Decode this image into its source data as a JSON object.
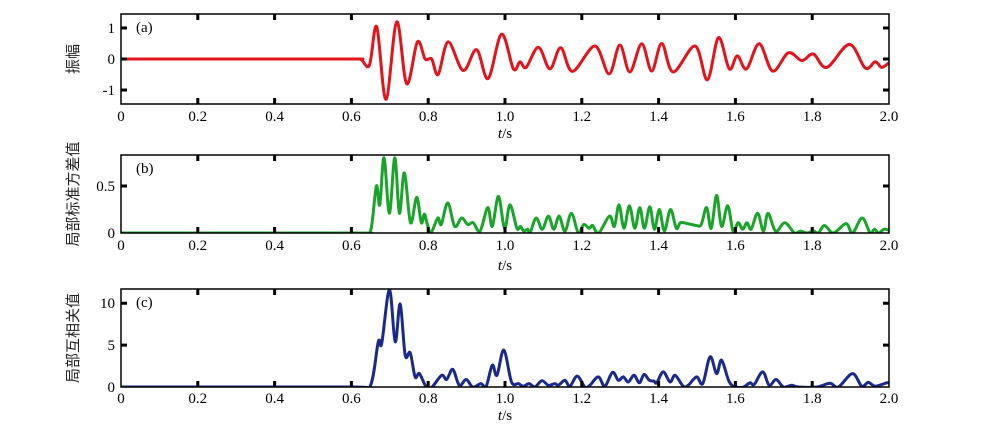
{
  "chart_data": [
    {
      "type": "line",
      "panel_label": "(a)",
      "ylabel": "振幅",
      "xlabel_italic": "t",
      "xlabel_unit": "/s",
      "xlim": [
        0,
        2.0
      ],
      "ylim": [
        -1.45,
        1.45
      ],
      "xticks": [
        "0",
        "0.2",
        "0.4",
        "0.6",
        "0.8",
        "1.0",
        "1.2",
        "1.4",
        "1.6",
        "1.8",
        "2.0"
      ],
      "yticks": [
        {
          "v": 1,
          "label": "1"
        },
        {
          "v": 0,
          "label": "0"
        },
        {
          "v": -1,
          "label": "-1"
        }
      ],
      "color": "#e3141b",
      "series": {
        "name": "amplitude",
        "x": [
          0,
          0.3,
          0.6,
          0.625,
          0.647,
          0.666,
          0.69,
          0.718,
          0.744,
          0.772,
          0.792,
          0.809,
          0.826,
          0.852,
          0.891,
          0.926,
          0.956,
          0.991,
          1.022,
          1.039,
          1.055,
          1.087,
          1.117,
          1.145,
          1.176,
          1.234,
          1.271,
          1.299,
          1.325,
          1.356,
          1.382,
          1.408,
          1.438,
          1.495,
          1.527,
          1.556,
          1.584,
          1.605,
          1.629,
          1.662,
          1.697,
          1.738,
          1.773,
          1.803,
          1.838,
          1.897,
          1.938,
          1.964,
          1.981,
          2.0
        ],
        "y": [
          0,
          0,
          0,
          -0.02,
          -0.2,
          1.04,
          -1.3,
          1.2,
          -0.8,
          0.55,
          0,
          0,
          -0.5,
          0.55,
          -0.37,
          0.3,
          -0.63,
          0.8,
          -0.32,
          -0.09,
          -0.27,
          0.38,
          -0.32,
          0.36,
          -0.4,
          0.42,
          -0.48,
          0.45,
          -0.42,
          0.49,
          -0.39,
          0.5,
          -0.42,
          0.42,
          -0.67,
          0.69,
          -0.32,
          0.1,
          -0.32,
          0.49,
          -0.39,
          0.2,
          -0.05,
          0.16,
          -0.27,
          0.47,
          -0.29,
          -0.09,
          -0.27,
          -0.12
        ]
      }
    },
    {
      "type": "line",
      "panel_label": "(b)",
      "ylabel": "局部标准方差值",
      "xlabel_italic": "t",
      "xlabel_unit": "/s",
      "xlim": [
        0,
        2.0
      ],
      "ylim": [
        0,
        0.83
      ],
      "xticks": [
        "0",
        "0.2",
        "0.4",
        "0.6",
        "0.8",
        "1.0",
        "1.2",
        "1.4",
        "1.6",
        "1.8",
        "2.0"
      ],
      "yticks": [
        {
          "v": 0.5,
          "label": "0.5"
        },
        {
          "v": 0,
          "label": "0"
        }
      ],
      "color": "#1aa52a",
      "series": {
        "name": "local standard deviation",
        "x": [
          0,
          0.6,
          0.633,
          0.651,
          0.665,
          0.674,
          0.685,
          0.699,
          0.713,
          0.725,
          0.738,
          0.754,
          0.77,
          0.782,
          0.79,
          0.798,
          0.807,
          0.825,
          0.834,
          0.851,
          0.869,
          0.887,
          0.903,
          0.917,
          0.935,
          0.955,
          0.967,
          0.983,
          0.999,
          1.013,
          1.031,
          1.04,
          1.049,
          1.059,
          1.065,
          1.081,
          1.097,
          1.113,
          1.127,
          1.141,
          1.156,
          1.173,
          1.191,
          1.205,
          1.219,
          1.228,
          1.244,
          1.272,
          1.285,
          1.297,
          1.31,
          1.324,
          1.338,
          1.351,
          1.363,
          1.377,
          1.389,
          1.402,
          1.415,
          1.431,
          1.446,
          1.457,
          1.475,
          1.498,
          1.511,
          1.525,
          1.537,
          1.551,
          1.564,
          1.58,
          1.594,
          1.607,
          1.619,
          1.63,
          1.641,
          1.658,
          1.673,
          1.685,
          1.705,
          1.729,
          1.754,
          1.769,
          1.786,
          1.804,
          1.816,
          1.832,
          1.855,
          1.888,
          1.905,
          1.93,
          1.951,
          1.962,
          1.973,
          1.987,
          2.0
        ],
        "y": [
          0,
          0,
          0,
          0.04,
          0.5,
          0.3,
          0.8,
          0.21,
          0.8,
          0.21,
          0.64,
          0.11,
          0.38,
          0.11,
          0.2,
          0.09,
          0,
          0.16,
          0.09,
          0.32,
          0.07,
          0.16,
          0.09,
          0.11,
          0.02,
          0.27,
          0.07,
          0.39,
          0.05,
          0.3,
          0.05,
          0.07,
          0.02,
          0.04,
          0,
          0.16,
          0.04,
          0.18,
          0.04,
          0.18,
          0.02,
          0.21,
          0,
          0.09,
          0.05,
          0.08,
          0,
          0.18,
          0.07,
          0.3,
          0.05,
          0.29,
          0.05,
          0.27,
          0.05,
          0.28,
          0.04,
          0.25,
          0.02,
          0.25,
          0.05,
          0.11,
          0.1,
          0.08,
          0.09,
          0.27,
          0.05,
          0.4,
          0.07,
          0.29,
          0.02,
          0.11,
          0.04,
          0.11,
          0.04,
          0.21,
          0.02,
          0.21,
          0.02,
          0.11,
          0,
          0.02,
          0,
          0.02,
          0,
          0.08,
          0,
          0.1,
          0,
          0.16,
          0,
          0.04,
          0,
          0.04,
          0.03
        ]
      }
    },
    {
      "type": "line",
      "panel_label": "(c)",
      "ylabel": "局部互相关值",
      "xlabel_italic": "t",
      "xlabel_unit": "/s",
      "xlim": [
        0,
        2.0
      ],
      "ylim": [
        0,
        11.7
      ],
      "xticks": [
        "0",
        "0.2",
        "0.4",
        "0.6",
        "0.8",
        "1.0",
        "1.2",
        "1.4",
        "1.6",
        "1.8",
        "2.0"
      ],
      "yticks": [
        {
          "v": 10,
          "label": "10"
        },
        {
          "v": 5,
          "label": "5"
        },
        {
          "v": 0,
          "label": "0"
        }
      ],
      "color": "#1a2a8c",
      "series": {
        "name": "local cross-correlation",
        "x": [
          0,
          0.6,
          0.648,
          0.67,
          0.679,
          0.699,
          0.714,
          0.727,
          0.74,
          0.753,
          0.766,
          0.777,
          0.795,
          0.81,
          0.835,
          0.848,
          0.864,
          0.881,
          0.899,
          0.916,
          0.937,
          0.951,
          0.967,
          0.979,
          0.997,
          1.017,
          1.035,
          1.048,
          1.063,
          1.078,
          1.096,
          1.113,
          1.13,
          1.139,
          1.156,
          1.169,
          1.188,
          1.208,
          1.221,
          1.243,
          1.26,
          1.28,
          1.295,
          1.308,
          1.321,
          1.336,
          1.35,
          1.362,
          1.376,
          1.388,
          1.395,
          1.412,
          1.43,
          1.443,
          1.464,
          1.477,
          1.499,
          1.515,
          1.534,
          1.551,
          1.564,
          1.584,
          1.603,
          1.621,
          1.638,
          1.649,
          1.671,
          1.688,
          1.706,
          1.725,
          1.747,
          1.764,
          1.812,
          1.846,
          1.868,
          1.905,
          1.929,
          1.946,
          1.964,
          1.994,
          2.0
        ],
        "y": [
          0,
          0,
          0,
          5.4,
          5.2,
          11.6,
          5.4,
          9.9,
          3.8,
          4.1,
          1.2,
          1.6,
          0,
          0,
          1.4,
          0.9,
          2.1,
          0.2,
          0.9,
          0,
          0.4,
          0.1,
          2.6,
          1.4,
          4.4,
          0.6,
          0.4,
          0.1,
          0.4,
          0,
          0.75,
          0.2,
          0.4,
          0.2,
          0.8,
          0.1,
          1.3,
          0,
          0.2,
          1.2,
          0.1,
          1.75,
          0.8,
          1.2,
          0.6,
          1.4,
          0.5,
          1.5,
          0.8,
          0.7,
          0.5,
          1.8,
          0.6,
          1.4,
          0.1,
          0.2,
          1.2,
          0.4,
          3.6,
          1.6,
          3.2,
          0.6,
          0,
          0,
          0.5,
          0.3,
          1.8,
          0.2,
          0.9,
          0,
          0.2,
          0,
          0,
          0.45,
          0,
          1.6,
          0.1,
          0.55,
          0.1,
          0.5,
          0.5
        ]
      }
    }
  ]
}
